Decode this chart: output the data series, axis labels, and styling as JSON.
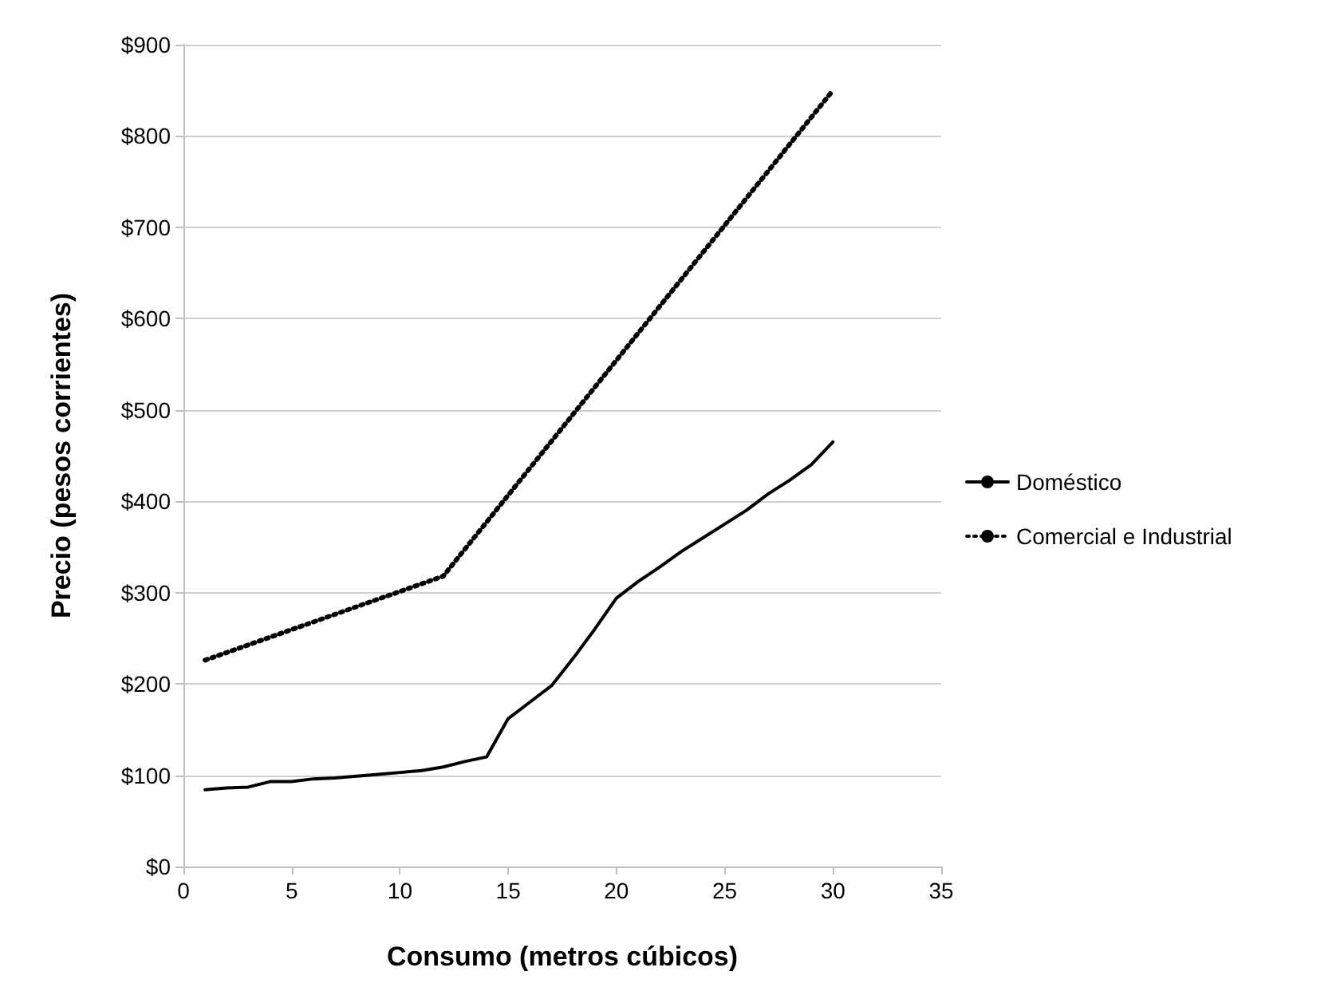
{
  "chart_data": {
    "type": "line",
    "xlabel": "Consumo (metros cúbicos)",
    "ylabel": "Precio (pesos corrientes)",
    "xlim": [
      0,
      35
    ],
    "xticks": [
      0,
      5,
      10,
      15,
      20,
      25,
      30,
      35
    ],
    "ylim": [
      0,
      900
    ],
    "yticks": [
      {
        "value": 0,
        "label": "$0"
      },
      {
        "value": 100,
        "label": "$100"
      },
      {
        "value": 200,
        "label": "$200"
      },
      {
        "value": 300,
        "label": "$300"
      },
      {
        "value": 400,
        "label": "$400"
      },
      {
        "value": 500,
        "label": "$500"
      },
      {
        "value": 600,
        "label": "$600"
      },
      {
        "value": 700,
        "label": "$700"
      },
      {
        "value": 800,
        "label": "$800"
      },
      {
        "value": 900,
        "label": "$900"
      }
    ],
    "grid": "y",
    "legend": "right",
    "marker": "none",
    "series": [
      {
        "name": "Doméstico",
        "color": "#000000",
        "line_style": "solid",
        "x": [
          1,
          2,
          3,
          4,
          5,
          6,
          7,
          8,
          9,
          10,
          11,
          12,
          13,
          14,
          15,
          16,
          17,
          18,
          19,
          20,
          21,
          22,
          23,
          24,
          25,
          26,
          27,
          28,
          29,
          30
        ],
        "values": [
          84,
          86,
          87,
          93,
          93,
          96,
          97,
          99,
          101,
          103,
          105,
          109,
          115,
          120,
          162,
          180,
          198,
          228,
          260,
          294,
          312,
          328,
          345,
          360,
          375,
          390,
          408,
          423,
          440,
          465
        ]
      },
      {
        "name": "Comercial e Industrial",
        "color": "#000000",
        "line_style": "dotted",
        "x": [
          1,
          12,
          30
        ],
        "values": [
          226,
          318,
          850
        ]
      }
    ]
  }
}
